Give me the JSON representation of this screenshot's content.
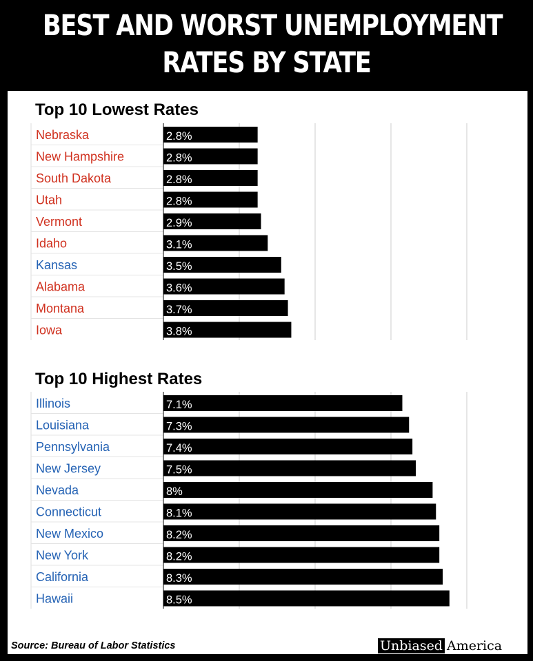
{
  "title_lines": [
    "BEST AND WORST UNEMPLOYMENT",
    "RATES BY STATE"
  ],
  "sections": [
    {
      "title": "Top 10 Lowest Rates"
    },
    {
      "title": "Top 10 Highest Rates"
    }
  ],
  "source": "Source: Bureau of Labor Statistics",
  "logo": {
    "part1": "Unbiased",
    "part2": "America"
  },
  "colors": {
    "red_label": "#d0311f",
    "blue_label": "#2462b4",
    "bar": "#000000",
    "gridline": "#cccccc"
  },
  "chart_data": [
    {
      "type": "bar",
      "orientation": "horizontal",
      "title": "Top 10 Lowest Rates",
      "xlim": [
        0,
        10
      ],
      "grid": true,
      "categories": [
        "Nebraska",
        "New Hampshire",
        "South Dakota",
        "Utah",
        "Vermont",
        "Idaho",
        "Kansas",
        "Alabama",
        "Montana",
        "Iowa"
      ],
      "values": [
        2.8,
        2.8,
        2.8,
        2.8,
        2.9,
        3.1,
        3.5,
        3.6,
        3.7,
        3.8
      ],
      "value_labels": [
        "2.8%",
        "2.8%",
        "2.8%",
        "2.8%",
        "2.9%",
        "3.1%",
        "3.5%",
        "3.6%",
        "3.7%",
        "3.8%"
      ],
      "label_colors": [
        "red",
        "red",
        "red",
        "red",
        "red",
        "red",
        "blue",
        "red",
        "red",
        "red"
      ]
    },
    {
      "type": "bar",
      "orientation": "horizontal",
      "title": "Top 10 Highest Rates",
      "xlim": [
        0,
        10
      ],
      "grid": true,
      "categories": [
        "Illinois",
        "Louisiana",
        "Pennsylvania",
        "New Jersey",
        "Nevada",
        "Connecticut",
        "New Mexico",
        "New York",
        "California",
        "Hawaii"
      ],
      "values": [
        7.1,
        7.3,
        7.4,
        7.5,
        8.0,
        8.1,
        8.2,
        8.2,
        8.3,
        8.5
      ],
      "value_labels": [
        "7.1%",
        "7.3%",
        "7.4%",
        "7.5%",
        "8%",
        "8.1%",
        "8.2%",
        "8.2%",
        "8.3%",
        "8.5%"
      ],
      "label_colors": [
        "blue",
        "blue",
        "blue",
        "blue",
        "blue",
        "blue",
        "blue",
        "blue",
        "blue",
        "blue"
      ]
    }
  ]
}
